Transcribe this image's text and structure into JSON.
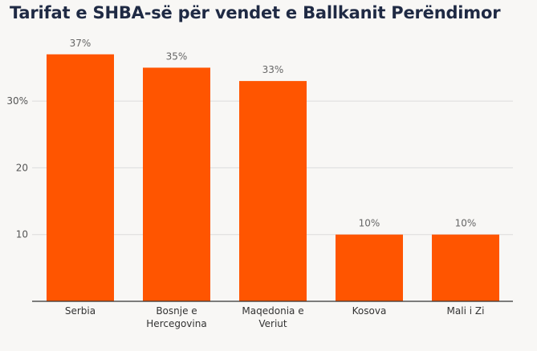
{
  "chart_data": {
    "type": "bar",
    "title": "Tarifat e SHBA-së për vendet e Ballkanit Perëndimor",
    "categories": [
      [
        "Serbia"
      ],
      [
        "Bosnje e",
        "Hercegovina"
      ],
      [
        "Maqedonia e",
        "Veriut"
      ],
      [
        "Kosova"
      ],
      [
        "Mali i Zi"
      ]
    ],
    "values": [
      37,
      35,
      33,
      10,
      10
    ],
    "data_labels": [
      "37%",
      "35%",
      "33%",
      "10%",
      "10%"
    ],
    "ylim": [
      0,
      40
    ],
    "yticks": [
      {
        "value": 10,
        "label": "10"
      },
      {
        "value": 20,
        "label": "20"
      },
      {
        "value": 30,
        "label": "30%"
      }
    ],
    "xlabel": "",
    "ylabel": "",
    "grid": true,
    "legend": "none",
    "colors": {
      "bar": "#ff5500",
      "grid": "#dcdcdc",
      "axis": "#333333",
      "tick_text": "#555555",
      "label_text": "#666666",
      "category_text": "#333333",
      "title": "#1f2a44",
      "background": "#f8f7f5"
    }
  }
}
